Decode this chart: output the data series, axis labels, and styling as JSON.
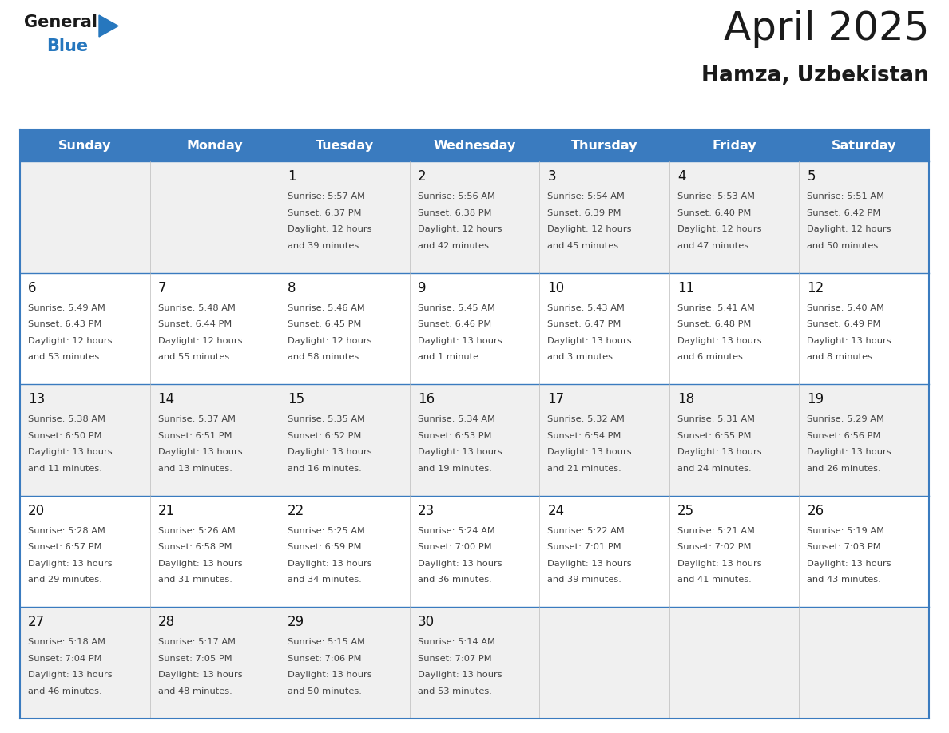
{
  "title": "April 2025",
  "subtitle": "Hamza, Uzbekistan",
  "header_bg": "#3a7bbf",
  "header_text": "#ffffff",
  "row_bg_odd": "#f0f0f0",
  "row_bg_even": "#ffffff",
  "border_color": "#3a7bbf",
  "day_headers": [
    "Sunday",
    "Monday",
    "Tuesday",
    "Wednesday",
    "Thursday",
    "Friday",
    "Saturday"
  ],
  "title_color": "#1a1a1a",
  "subtitle_color": "#1a1a1a",
  "cell_text_color": "#444444",
  "day_num_color": "#111111",
  "calendar_data": [
    [
      {
        "day": "",
        "info": ""
      },
      {
        "day": "",
        "info": ""
      },
      {
        "day": "1",
        "info": "Sunrise: 5:57 AM\nSunset: 6:37 PM\nDaylight: 12 hours\nand 39 minutes."
      },
      {
        "day": "2",
        "info": "Sunrise: 5:56 AM\nSunset: 6:38 PM\nDaylight: 12 hours\nand 42 minutes."
      },
      {
        "day": "3",
        "info": "Sunrise: 5:54 AM\nSunset: 6:39 PM\nDaylight: 12 hours\nand 45 minutes."
      },
      {
        "day": "4",
        "info": "Sunrise: 5:53 AM\nSunset: 6:40 PM\nDaylight: 12 hours\nand 47 minutes."
      },
      {
        "day": "5",
        "info": "Sunrise: 5:51 AM\nSunset: 6:42 PM\nDaylight: 12 hours\nand 50 minutes."
      }
    ],
    [
      {
        "day": "6",
        "info": "Sunrise: 5:49 AM\nSunset: 6:43 PM\nDaylight: 12 hours\nand 53 minutes."
      },
      {
        "day": "7",
        "info": "Sunrise: 5:48 AM\nSunset: 6:44 PM\nDaylight: 12 hours\nand 55 minutes."
      },
      {
        "day": "8",
        "info": "Sunrise: 5:46 AM\nSunset: 6:45 PM\nDaylight: 12 hours\nand 58 minutes."
      },
      {
        "day": "9",
        "info": "Sunrise: 5:45 AM\nSunset: 6:46 PM\nDaylight: 13 hours\nand 1 minute."
      },
      {
        "day": "10",
        "info": "Sunrise: 5:43 AM\nSunset: 6:47 PM\nDaylight: 13 hours\nand 3 minutes."
      },
      {
        "day": "11",
        "info": "Sunrise: 5:41 AM\nSunset: 6:48 PM\nDaylight: 13 hours\nand 6 minutes."
      },
      {
        "day": "12",
        "info": "Sunrise: 5:40 AM\nSunset: 6:49 PM\nDaylight: 13 hours\nand 8 minutes."
      }
    ],
    [
      {
        "day": "13",
        "info": "Sunrise: 5:38 AM\nSunset: 6:50 PM\nDaylight: 13 hours\nand 11 minutes."
      },
      {
        "day": "14",
        "info": "Sunrise: 5:37 AM\nSunset: 6:51 PM\nDaylight: 13 hours\nand 13 minutes."
      },
      {
        "day": "15",
        "info": "Sunrise: 5:35 AM\nSunset: 6:52 PM\nDaylight: 13 hours\nand 16 minutes."
      },
      {
        "day": "16",
        "info": "Sunrise: 5:34 AM\nSunset: 6:53 PM\nDaylight: 13 hours\nand 19 minutes."
      },
      {
        "day": "17",
        "info": "Sunrise: 5:32 AM\nSunset: 6:54 PM\nDaylight: 13 hours\nand 21 minutes."
      },
      {
        "day": "18",
        "info": "Sunrise: 5:31 AM\nSunset: 6:55 PM\nDaylight: 13 hours\nand 24 minutes."
      },
      {
        "day": "19",
        "info": "Sunrise: 5:29 AM\nSunset: 6:56 PM\nDaylight: 13 hours\nand 26 minutes."
      }
    ],
    [
      {
        "day": "20",
        "info": "Sunrise: 5:28 AM\nSunset: 6:57 PM\nDaylight: 13 hours\nand 29 minutes."
      },
      {
        "day": "21",
        "info": "Sunrise: 5:26 AM\nSunset: 6:58 PM\nDaylight: 13 hours\nand 31 minutes."
      },
      {
        "day": "22",
        "info": "Sunrise: 5:25 AM\nSunset: 6:59 PM\nDaylight: 13 hours\nand 34 minutes."
      },
      {
        "day": "23",
        "info": "Sunrise: 5:24 AM\nSunset: 7:00 PM\nDaylight: 13 hours\nand 36 minutes."
      },
      {
        "day": "24",
        "info": "Sunrise: 5:22 AM\nSunset: 7:01 PM\nDaylight: 13 hours\nand 39 minutes."
      },
      {
        "day": "25",
        "info": "Sunrise: 5:21 AM\nSunset: 7:02 PM\nDaylight: 13 hours\nand 41 minutes."
      },
      {
        "day": "26",
        "info": "Sunrise: 5:19 AM\nSunset: 7:03 PM\nDaylight: 13 hours\nand 43 minutes."
      }
    ],
    [
      {
        "day": "27",
        "info": "Sunrise: 5:18 AM\nSunset: 7:04 PM\nDaylight: 13 hours\nand 46 minutes."
      },
      {
        "day": "28",
        "info": "Sunrise: 5:17 AM\nSunset: 7:05 PM\nDaylight: 13 hours\nand 48 minutes."
      },
      {
        "day": "29",
        "info": "Sunrise: 5:15 AM\nSunset: 7:06 PM\nDaylight: 13 hours\nand 50 minutes."
      },
      {
        "day": "30",
        "info": "Sunrise: 5:14 AM\nSunset: 7:07 PM\nDaylight: 13 hours\nand 53 minutes."
      },
      {
        "day": "",
        "info": ""
      },
      {
        "day": "",
        "info": ""
      },
      {
        "day": "",
        "info": ""
      }
    ]
  ],
  "logo_general_color": "#1a1a1a",
  "logo_blue_color": "#2677be",
  "logo_triangle_color": "#2677be",
  "fig_width": 11.88,
  "fig_height": 9.18,
  "dpi": 100
}
